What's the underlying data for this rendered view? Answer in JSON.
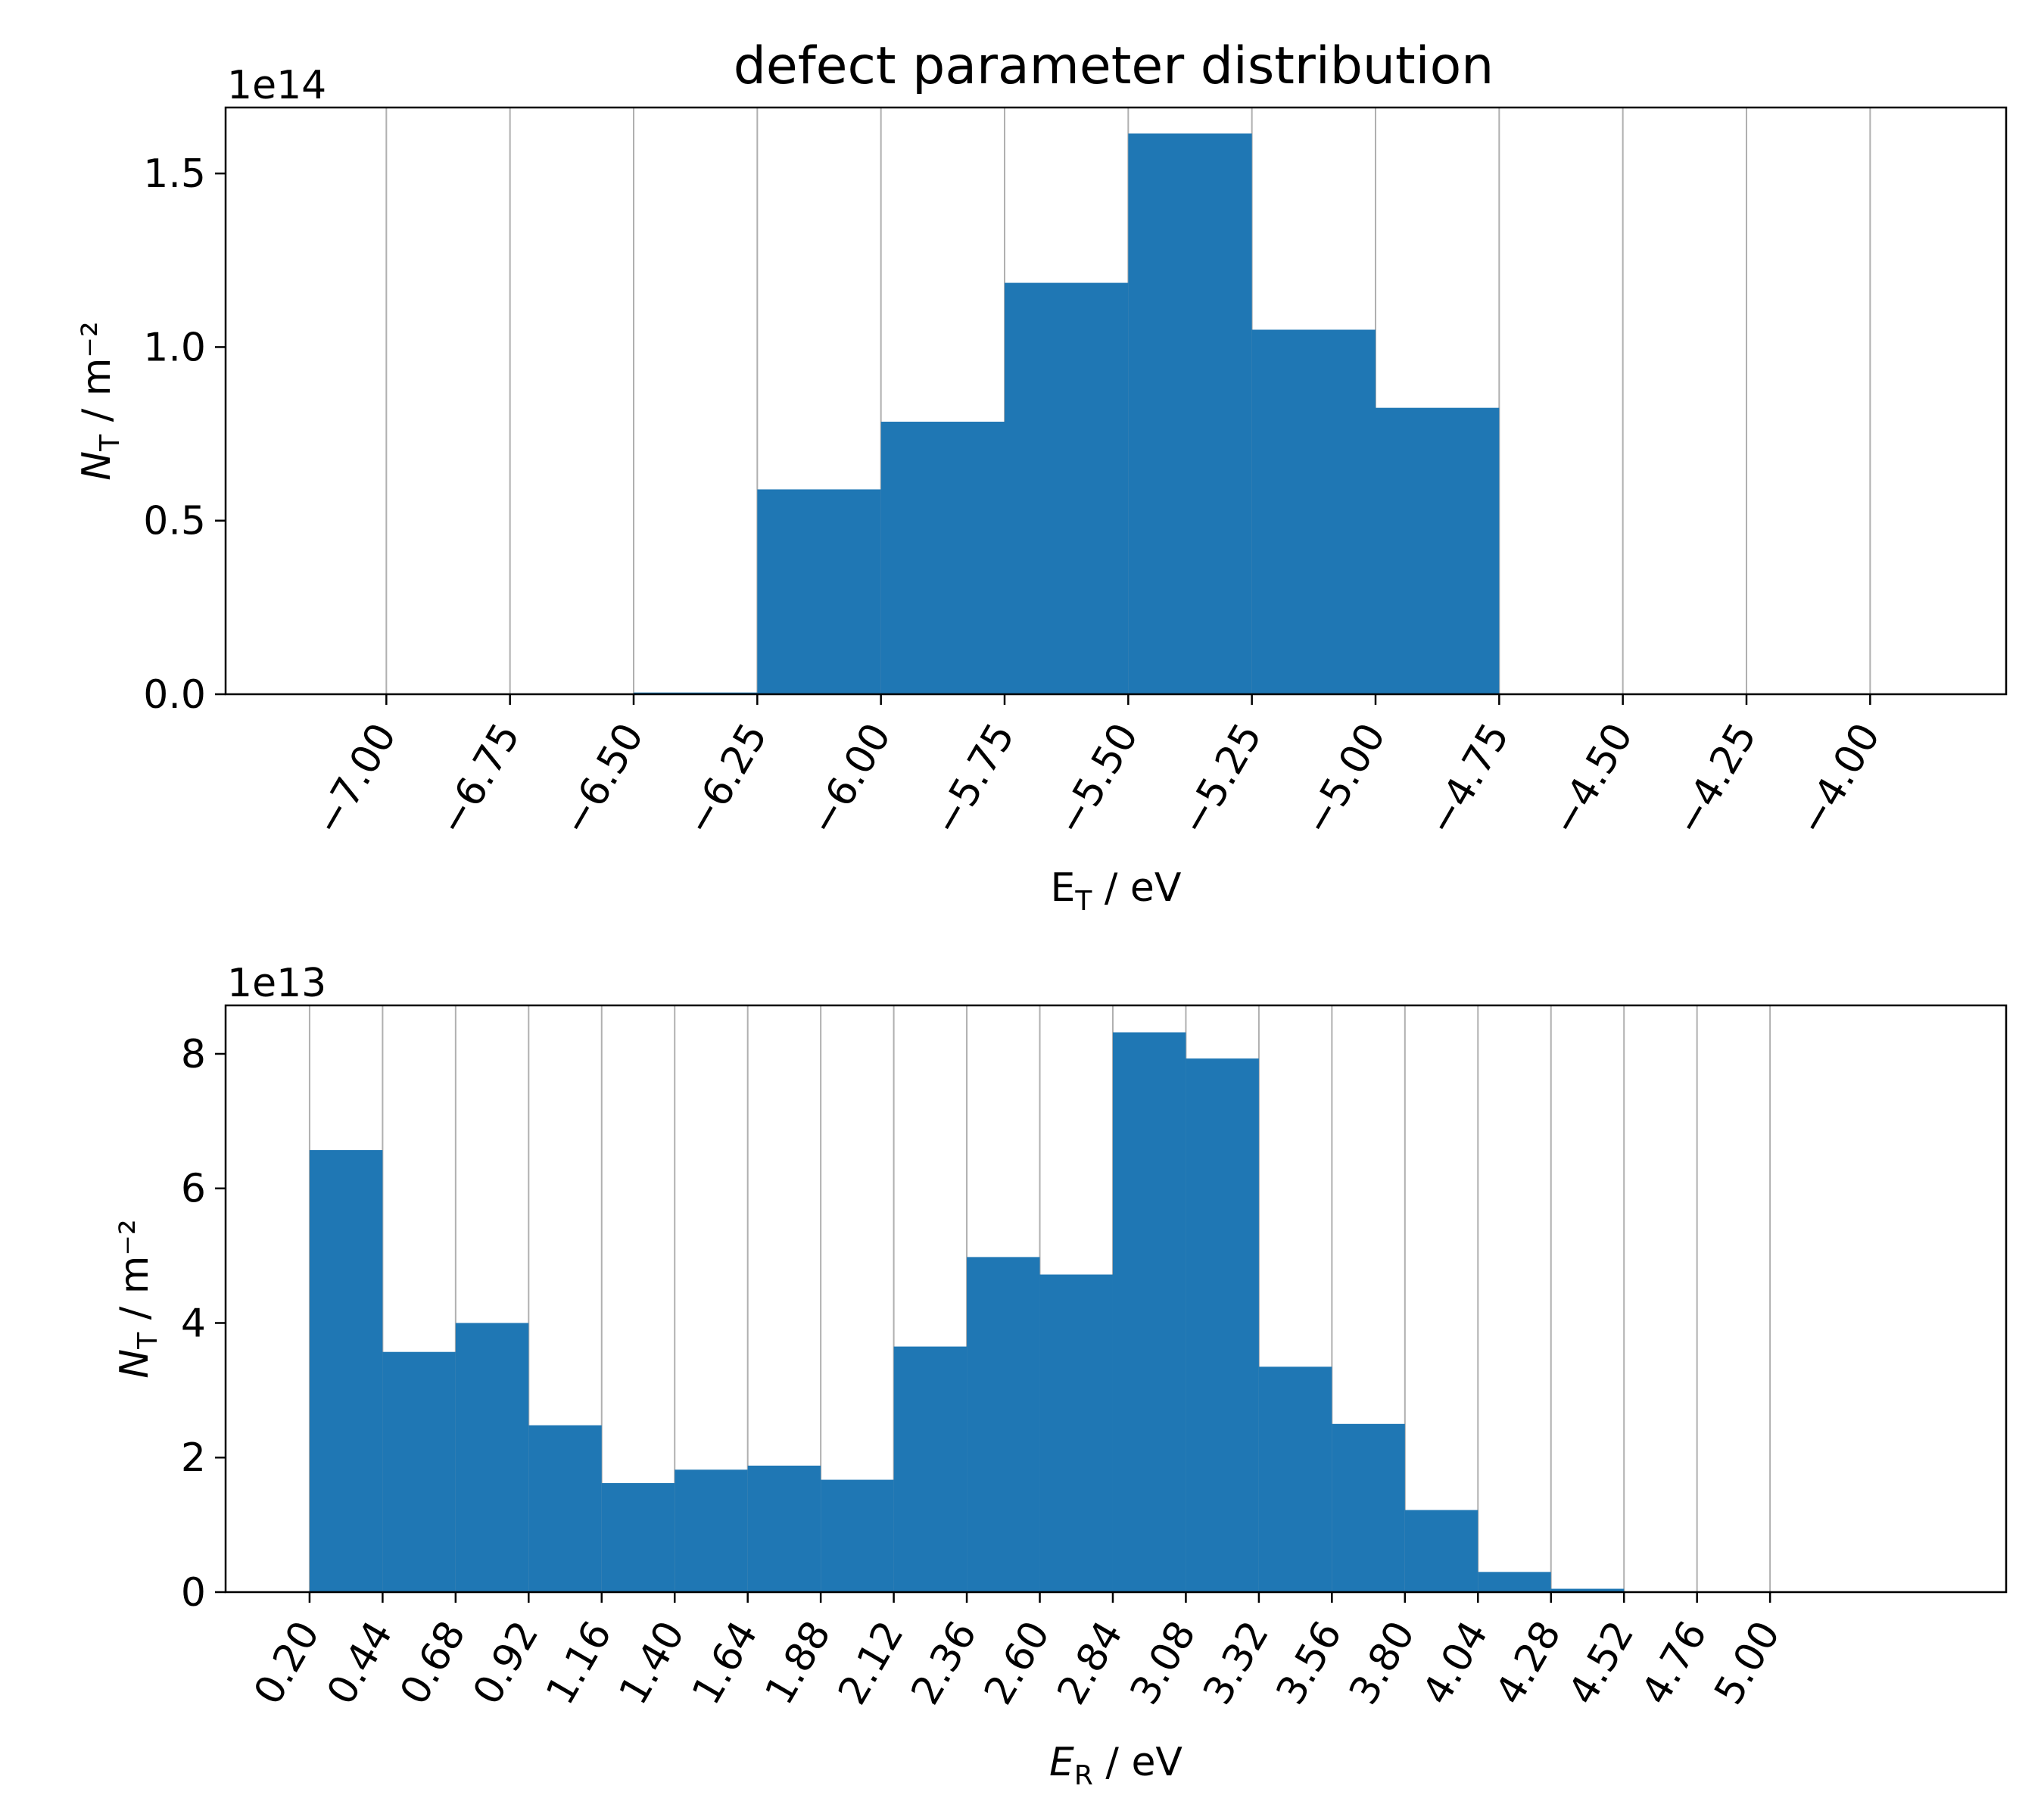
{
  "figure": {
    "title": "defect parameter distribution"
  },
  "colors": {
    "bar": "#1f77b4",
    "grid": "#b0b0b0",
    "axis": "#000000"
  },
  "chart_data": [
    {
      "type": "bar",
      "title": "defect parameter distribution",
      "xlabel": "E_T / eV",
      "xlabel_main": "E",
      "xlabel_sub": "T",
      "xlabel_rest": " / eV",
      "ylabel_main": "N",
      "ylabel_sub": "T",
      "ylabel_rest": " / m⁻²",
      "offset_text": "1e14",
      "multiplier": 100000000000000.0,
      "xlim": [
        -7.325,
        -3.725
      ],
      "ylim": [
        0,
        1.69
      ],
      "bin_edges": [
        -7.0,
        -6.75,
        -6.5,
        -6.25,
        -6.0,
        -5.75,
        -5.5,
        -5.25,
        -5.0,
        -4.75,
        -4.5,
        -4.25,
        -4.0
      ],
      "values": [
        0,
        0,
        0.005,
        0.59,
        0.785,
        1.185,
        1.615,
        1.05,
        0.825,
        0,
        0,
        0
      ],
      "xticks": [
        -7.0,
        -6.75,
        -6.5,
        -6.25,
        -6.0,
        -5.75,
        -5.5,
        -5.25,
        -5.0,
        -4.75,
        -4.5,
        -4.25,
        -4.0
      ],
      "xtick_labels": [
        "−7.00",
        "−6.75",
        "−6.50",
        "−6.25",
        "−6.00",
        "−5.75",
        "−5.50",
        "−5.25",
        "−5.00",
        "−4.75",
        "−4.50",
        "−4.25",
        "−4.00"
      ],
      "yticks": [
        0,
        0.5,
        1.0,
        1.5
      ],
      "ytick_labels": [
        "0.0",
        "0.5",
        "1.0",
        "1.5"
      ],
      "grid": "x"
    },
    {
      "type": "bar",
      "title": "",
      "xlabel": "E_R / eV",
      "xlabel_main": "E",
      "xlabel_sub": "R",
      "xlabel_rest": " / eV",
      "ylabel_main": "N",
      "ylabel_sub": "T",
      "ylabel_rest": " / m⁻²",
      "offset_text": "1e13",
      "multiplier": 10000000000000.0,
      "xlim": [
        -0.076,
        5.776
      ],
      "ylim": [
        0,
        8.72
      ],
      "bin_edges": [
        0.2,
        0.44,
        0.68,
        0.92,
        1.16,
        1.4,
        1.64,
        1.88,
        2.12,
        2.36,
        2.6,
        2.84,
        3.08,
        3.32,
        3.56,
        3.8,
        4.04,
        4.28,
        4.52,
        4.76,
        5.0
      ],
      "values": [
        6.57,
        3.57,
        4.0,
        2.48,
        1.62,
        1.82,
        1.88,
        1.67,
        3.65,
        4.98,
        4.72,
        8.32,
        7.93,
        3.35,
        2.5,
        1.22,
        0.3,
        0.05,
        0,
        0
      ],
      "xticks": [
        0.2,
        0.44,
        0.68,
        0.92,
        1.16,
        1.4,
        1.64,
        1.88,
        2.12,
        2.36,
        2.6,
        2.84,
        3.08,
        3.32,
        3.56,
        3.8,
        4.04,
        4.28,
        4.52,
        4.76,
        5.0
      ],
      "xtick_labels": [
        "0.20",
        "0.44",
        "0.68",
        "0.92",
        "1.16",
        "1.40",
        "1.64",
        "1.88",
        "2.12",
        "2.36",
        "2.60",
        "2.84",
        "3.08",
        "3.32",
        "3.56",
        "3.80",
        "4.04",
        "4.28",
        "4.52",
        "4.76",
        "5.00"
      ],
      "yticks": [
        0,
        2,
        4,
        6,
        8
      ],
      "ytick_labels": [
        "0",
        "2",
        "4",
        "6",
        "8"
      ],
      "grid": "x"
    }
  ]
}
